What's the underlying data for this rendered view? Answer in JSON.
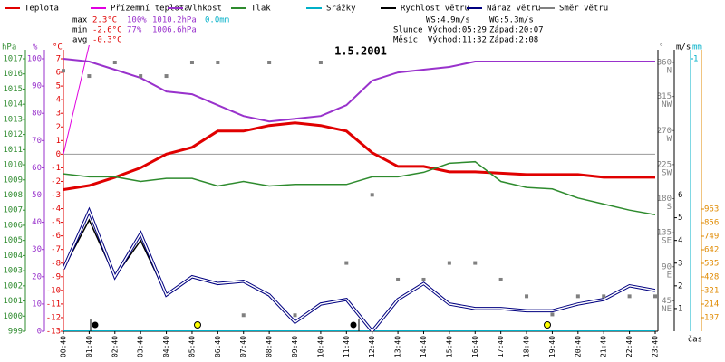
{
  "chart_data": {
    "type": "line",
    "title": "1.5.2001",
    "x_label": "čas",
    "categories": [
      "00:40",
      "01:40",
      "02:40",
      "03:40",
      "04:40",
      "05:40",
      "06:40",
      "07:40",
      "08:40",
      "09:40",
      "10:40",
      "11:40",
      "12:40",
      "13:40",
      "14:40",
      "15:40",
      "16:40",
      "17:40",
      "18:40",
      "19:40",
      "20:40",
      "21:40",
      "22:40",
      "23:40"
    ],
    "axes": {
      "hpa": {
        "unit": "hPa",
        "color": "#2e8b2e",
        "lim": [
          999,
          1017
        ],
        "ticks": [
          999,
          1000,
          1001,
          1002,
          1003,
          1004,
          1005,
          1006,
          1007,
          1008,
          1009,
          1010,
          1011,
          1012,
          1013,
          1014,
          1015,
          1016,
          1017
        ]
      },
      "pct": {
        "unit": "%",
        "color": "#9932cc",
        "lim": [
          0,
          100
        ],
        "ticks": [
          0,
          10,
          20,
          30,
          40,
          50,
          60,
          70,
          80,
          90,
          100
        ]
      },
      "degc": {
        "unit": "°C",
        "color": "#e00000",
        "lim": [
          -13,
          7
        ],
        "ticks": [
          -13,
          -12,
          -11,
          -10,
          -9,
          -8,
          -7,
          -6,
          -5,
          -4,
          -3,
          -2,
          -1,
          0,
          1,
          2,
          3,
          4,
          5,
          6,
          7
        ]
      },
      "dir": {
        "unit": "°",
        "color": "#808080",
        "lim": [
          0,
          360
        ],
        "ticks": [
          45,
          90,
          135,
          180,
          225,
          270,
          315,
          360
        ],
        "compass": [
          "NE",
          "E",
          "SE",
          "S",
          "SW",
          "W",
          "NW",
          "N"
        ]
      },
      "ms": {
        "unit": "m/s",
        "color": "#000000",
        "lim": [
          0,
          12
        ],
        "ticks": [
          1,
          2,
          3,
          4,
          5,
          6
        ]
      },
      "mm": {
        "unit": "mm",
        "color": "#00b0c8",
        "lim": [
          0,
          1
        ],
        "ticks": [
          1
        ]
      },
      "rad": {
        "color": "#e08a00",
        "lim": [
          0,
          2147
        ],
        "ticks": [
          107,
          214,
          321,
          428,
          535,
          642,
          749,
          856,
          963
        ]
      }
    },
    "series": [
      {
        "name": "Teplota",
        "color": "#e00000",
        "axis": "degc",
        "width": 3,
        "values": [
          -2.6,
          -2.3,
          -1.7,
          -1.0,
          0.0,
          0.5,
          1.7,
          1.7,
          2.1,
          2.3,
          2.1,
          1.7,
          0.1,
          -0.9,
          -0.9,
          -1.3,
          -1.3,
          -1.4,
          -1.5,
          -1.5,
          -1.5,
          -1.7,
          -1.7,
          -1.7
        ]
      },
      {
        "name": "Přízemní teplota",
        "color": "#e000e0",
        "axis": "degc",
        "width": 1,
        "values": [
          0.0,
          8.0,
          null,
          null,
          null,
          null,
          null,
          null,
          null,
          null,
          null,
          null,
          null,
          null,
          null,
          null,
          null,
          null,
          null,
          null,
          null,
          null,
          null,
          null
        ]
      },
      {
        "name": "Vlhkost",
        "color": "#9932cc",
        "axis": "pct",
        "width": 2,
        "values": [
          100,
          99,
          96,
          93,
          88,
          87,
          83,
          79,
          77,
          78,
          79,
          83,
          92,
          95,
          96,
          97,
          99,
          99,
          99,
          99,
          99,
          99,
          99,
          99
        ]
      },
      {
        "name": "Tlak",
        "color": "#2e8b2e",
        "axis": "hpa",
        "width": 1.5,
        "values": [
          1009.4,
          1009.2,
          1009.2,
          1008.9,
          1009.1,
          1009.1,
          1008.6,
          1008.9,
          1008.6,
          1008.7,
          1008.7,
          1008.7,
          1009.2,
          1009.2,
          1009.5,
          1010.1,
          1010.2,
          1008.9,
          1008.5,
          1008.4,
          1007.8,
          1007.4,
          1007.0,
          1006.7
        ]
      },
      {
        "name": "Srážky",
        "color": "#00b0c8",
        "axis": "mm",
        "width": 2,
        "values": [
          0,
          0,
          0,
          0,
          0,
          0,
          0,
          0,
          0,
          0,
          0,
          0,
          0,
          0,
          0,
          0,
          0,
          0,
          0,
          0,
          0,
          0,
          0,
          0
        ]
      },
      {
        "name": "Rychlost větru",
        "color": "#000000",
        "axis": "ms",
        "width": 1.5,
        "values": [
          2.75,
          4.9,
          2.4,
          4.0,
          1.6,
          2.4,
          2.1,
          2.2,
          1.6,
          0.4,
          1.2,
          1.4,
          0.0,
          1.4,
          2.1,
          1.2,
          1.0,
          1.0,
          0.9,
          0.9,
          1.2,
          1.4,
          2.0,
          1.8
        ]
      },
      {
        "name": "Náraz větru",
        "color": "#000080",
        "axis": "ms",
        "width": 1,
        "values": [
          2.75,
          5.3,
          2.4,
          4.3,
          1.6,
          2.4,
          2.1,
          2.2,
          1.6,
          0.4,
          1.2,
          1.4,
          0.0,
          1.4,
          2.1,
          1.2,
          1.0,
          1.0,
          0.9,
          0.9,
          1.2,
          1.4,
          2.0,
          1.8
        ]
      },
      {
        "name": "Směr větru",
        "color": "#808080",
        "axis": "dir",
        "marker": "square",
        "values": [
          349,
          342,
          360,
          342,
          342,
          360,
          360,
          26,
          360,
          26,
          360,
          95,
          185,
          73,
          73,
          95,
          95,
          73,
          51,
          27,
          51,
          51,
          51,
          51
        ]
      }
    ],
    "stats": [
      {
        "label": "max",
        "temp": "2.3°C",
        "hum": "100%",
        "press": "1010.2hPa",
        "rain": "0.0mm"
      },
      {
        "label": "min",
        "temp": "-2.6°C",
        "hum": "77%",
        "press": "1006.6hPa"
      },
      {
        "label": "avg",
        "temp": "-0.3°C"
      }
    ],
    "info": [
      [
        "WS:4.9m/s",
        "WG:5.3m/s"
      ],
      [
        "Slunce Východ:05:29",
        "Západ:20:07"
      ],
      [
        "Měsíc  Východ:11:32",
        "Západ:2:08"
      ]
    ]
  }
}
